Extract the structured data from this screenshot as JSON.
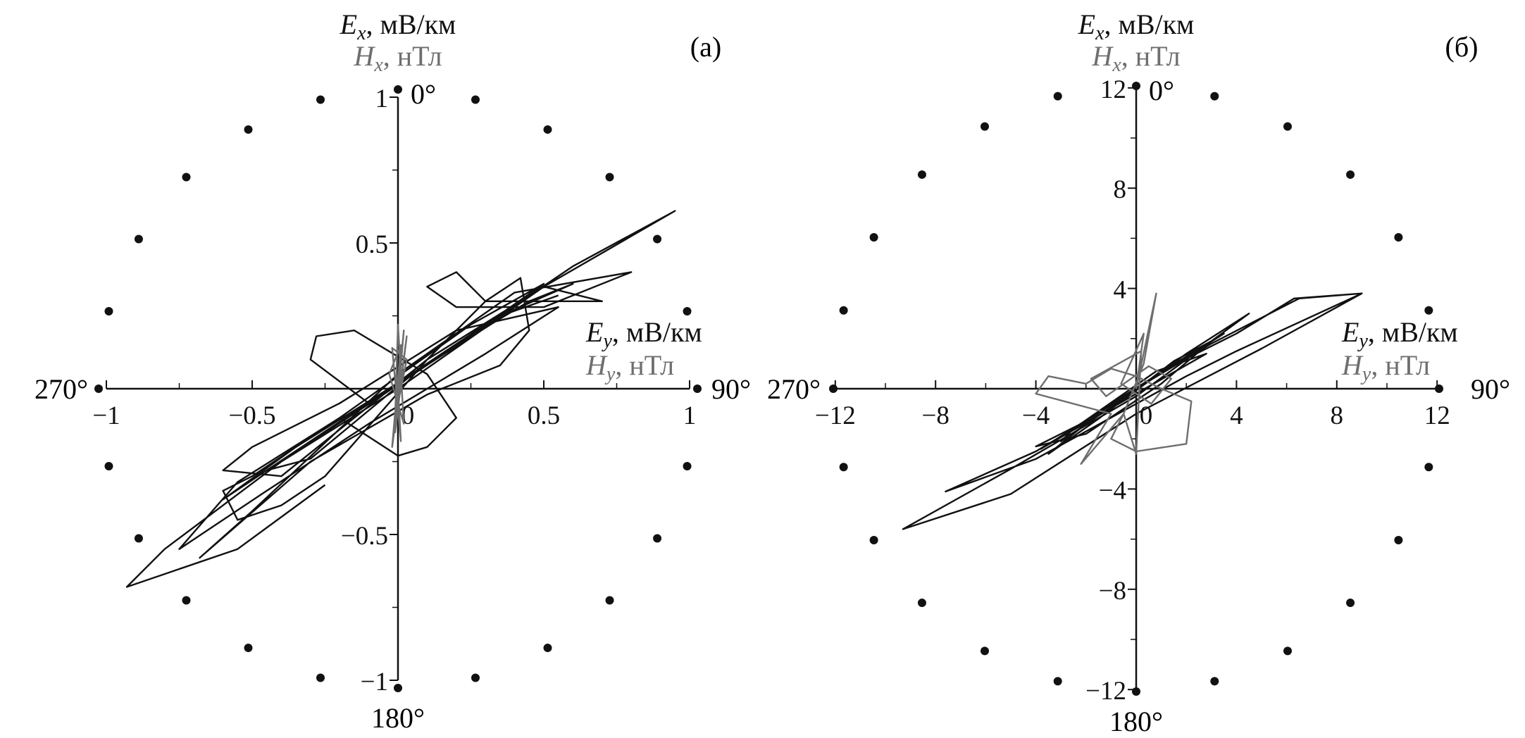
{
  "colors": {
    "E": "#111111",
    "H": "#6e6e6e",
    "dots": "#111111"
  },
  "chart_data": [
    {
      "type": "line",
      "panel_label": "(а)",
      "x_axis": {
        "symbol_E": "E",
        "sub_E": "y",
        "unit_E": ", мВ/км",
        "symbol_H": "H",
        "sub_H": "y",
        "unit_H": ", нТл"
      },
      "y_axis": {
        "symbol_E": "E",
        "sub_E": "x",
        "unit_E": ", мВ/км",
        "symbol_H": "H",
        "sub_H": "x",
        "unit_H": ", нТл"
      },
      "xlim": [
        -1,
        1
      ],
      "ylim": [
        -1,
        1
      ],
      "major_ticks": [
        -1,
        -0.5,
        0.5,
        1
      ],
      "minor_ticks": [
        -0.75,
        -0.25,
        0.25,
        0.75
      ],
      "tick_labels": [
        "−1",
        "−0.5",
        "0.5",
        "1"
      ],
      "origin_label": "0",
      "angle_labels": [
        "0°",
        "90°",
        "180°",
        "270°"
      ],
      "direction_dots_every_deg": 15,
      "series": [
        {
          "color_key": "E",
          "points": [
            [
              -0.25,
              -0.33
            ],
            [
              -0.55,
              -0.55
            ],
            [
              -0.93,
              -0.68
            ],
            [
              -0.8,
              -0.55
            ],
            [
              -0.4,
              -0.25
            ],
            [
              0,
              0
            ],
            [
              0.5,
              0.35
            ],
            [
              0.95,
              0.61
            ],
            [
              0.6,
              0.42
            ],
            [
              0.2,
              0.15
            ],
            [
              -0.1,
              -0.05
            ],
            [
              -0.3,
              0.1
            ],
            [
              -0.28,
              0.18
            ],
            [
              -0.15,
              0.2
            ],
            [
              0.1,
              0.05
            ],
            [
              0.2,
              -0.1
            ],
            [
              0.1,
              -0.2
            ],
            [
              0,
              -0.23
            ],
            [
              -0.2,
              -0.1
            ],
            [
              -0.5,
              -0.3
            ],
            [
              -0.6,
              -0.35
            ],
            [
              -0.55,
              -0.45
            ],
            [
              -0.4,
              -0.4
            ],
            [
              -0.25,
              -0.3
            ],
            [
              0.1,
              0.1
            ],
            [
              0.3,
              0.3
            ],
            [
              0.42,
              0.38
            ],
            [
              0.45,
              0.2
            ],
            [
              0.35,
              0.08
            ],
            [
              0.1,
              -0.02
            ],
            [
              -0.3,
              -0.25
            ],
            [
              -0.68,
              -0.58
            ],
            [
              -0.5,
              -0.42
            ],
            [
              0,
              0.05
            ],
            [
              0.4,
              0.33
            ],
            [
              0.8,
              0.4
            ],
            [
              0.5,
              0.28
            ],
            [
              0.2,
              0.28
            ],
            [
              0.1,
              0.35
            ],
            [
              0.2,
              0.4
            ],
            [
              0.3,
              0.3
            ],
            [
              0.6,
              0.3
            ],
            [
              0.7,
              0.3
            ],
            [
              0.5,
              0.35
            ],
            [
              0.1,
              0.1
            ],
            [
              -0.4,
              -0.3
            ],
            [
              -0.6,
              -0.28
            ],
            [
              -0.5,
              -0.2
            ],
            [
              -0.2,
              -0.05
            ],
            [
              0.2,
              0.2
            ],
            [
              0.55,
              0.28
            ],
            [
              0.3,
              0.12
            ],
            [
              -0.1,
              -0.12
            ],
            [
              -0.45,
              -0.35
            ],
            [
              -0.75,
              -0.55
            ],
            [
              -0.55,
              -0.32
            ],
            [
              -0.2,
              -0.1
            ],
            [
              0.25,
              0.22
            ],
            [
              0.5,
              0.36
            ],
            [
              0.3,
              0.22
            ],
            [
              0,
              0.02
            ],
            [
              -0.35,
              -0.2
            ],
            [
              -0.6,
              -0.38
            ],
            [
              -0.3,
              -0.18
            ],
            [
              0.15,
              0.12
            ],
            [
              0.45,
              0.3
            ],
            [
              0.6,
              0.36
            ],
            [
              0.35,
              0.25
            ],
            [
              -0.05,
              -0.02
            ],
            [
              -0.45,
              -0.28
            ],
            [
              -0.3,
              -0.24
            ],
            [
              0.05,
              0.05
            ],
            [
              0.38,
              0.26
            ],
            [
              0.55,
              0.32
            ]
          ]
        },
        {
          "color_key": "H",
          "points": [
            [
              0,
              0
            ],
            [
              0.02,
              0.2
            ],
            [
              -0.01,
              -0.15
            ],
            [
              0.03,
              0.18
            ],
            [
              -0.02,
              -0.2
            ],
            [
              0.01,
              0.15
            ],
            [
              -0.03,
              0.05
            ],
            [
              0.02,
              -0.12
            ],
            [
              0,
              0.22
            ],
            [
              -0.01,
              -0.1
            ],
            [
              0.03,
              0.1
            ],
            [
              -0.02,
              0.14
            ],
            [
              0.01,
              -0.18
            ],
            [
              0,
              0
            ]
          ]
        }
      ]
    },
    {
      "type": "line",
      "panel_label": "(б)",
      "x_axis": {
        "symbol_E": "E",
        "sub_E": "y",
        "unit_E": ", мВ/км",
        "symbol_H": "H",
        "sub_H": "y",
        "unit_H": ", нТл"
      },
      "y_axis": {
        "symbol_E": "E",
        "sub_E": "x",
        "unit_E": ", мВ/км",
        "symbol_H": "H",
        "sub_H": "x",
        "unit_H": ", нТл"
      },
      "xlim": [
        -12,
        12
      ],
      "ylim": [
        -12,
        12
      ],
      "major_ticks": [
        -12,
        -8,
        -4,
        4,
        8,
        12
      ],
      "minor_ticks": [
        -10,
        -6,
        -2,
        2,
        6,
        10
      ],
      "tick_labels": [
        "−12",
        "−8",
        "−4",
        "4",
        "8",
        "12"
      ],
      "origin_label": "0",
      "angle_labels": [
        "0°",
        "90°",
        "180°",
        "270°"
      ],
      "direction_dots_every_deg": 15,
      "series": [
        {
          "color_key": "E",
          "points": [
            [
              0,
              0
            ],
            [
              3,
              1.8
            ],
            [
              6.5,
              3.6
            ],
            [
              9,
              3.8
            ],
            [
              6.3,
              3.6
            ],
            [
              4,
              2.2
            ],
            [
              2,
              1.2
            ],
            [
              0,
              0
            ],
            [
              -2,
              -1.3
            ],
            [
              -4,
              -2.5
            ],
            [
              -7.6,
              -4.1
            ],
            [
              -4,
              -2.8
            ],
            [
              0,
              -0.6
            ],
            [
              2,
              0.5
            ],
            [
              4,
              1.5
            ],
            [
              9,
              3.8
            ],
            [
              5,
              1.6
            ],
            [
              0,
              -1
            ],
            [
              -5,
              -4.2
            ],
            [
              -9.3,
              -5.6
            ],
            [
              -5,
              -3.2
            ],
            [
              0,
              -0.3
            ],
            [
              4.5,
              3
            ],
            [
              2,
              1.4
            ],
            [
              -1,
              -0.8
            ],
            [
              -4,
              -2.3
            ],
            [
              -2,
              -1.8
            ],
            [
              1,
              0.2
            ],
            [
              3,
              1.9
            ],
            [
              1.5,
              1.1
            ],
            [
              -1.5,
              -1.2
            ],
            [
              -3.5,
              -2.6
            ],
            [
              -1,
              -0.6
            ],
            [
              2.5,
              1.6
            ],
            [
              3.5,
              2.2
            ],
            [
              0.5,
              0.3
            ],
            [
              -3,
              -2.1
            ],
            [
              -2.5,
              -1.6
            ],
            [
              0.8,
              0.7
            ],
            [
              2.8,
              1.4
            ],
            [
              0,
              -0.2
            ],
            [
              -3.8,
              -2.4
            ],
            [
              0,
              0
            ]
          ]
        },
        {
          "color_key": "H",
          "points": [
            [
              0,
              0
            ],
            [
              0.8,
              3.8
            ],
            [
              0.3,
              1
            ],
            [
              -0.5,
              -1
            ],
            [
              -2.2,
              -3
            ],
            [
              -1,
              -1
            ],
            [
              -4,
              -0.2
            ],
            [
              -3.5,
              0.5
            ],
            [
              -2,
              0.2
            ],
            [
              -1,
              0.8
            ],
            [
              0,
              0.5
            ],
            [
              1,
              0
            ],
            [
              2.2,
              -0.5
            ],
            [
              2,
              -2.2
            ],
            [
              0,
              -2.5
            ],
            [
              -1,
              -2
            ],
            [
              -0.5,
              -1
            ],
            [
              0,
              -2.6
            ],
            [
              0.2,
              1.5
            ],
            [
              -1.8,
              0.4
            ],
            [
              -1.2,
              -0.3
            ],
            [
              0.5,
              0.9
            ],
            [
              1.4,
              0.4
            ],
            [
              0.6,
              -0.6
            ],
            [
              -0.6,
              0.2
            ],
            [
              0.3,
              2.2
            ],
            [
              0,
              0
            ]
          ]
        }
      ]
    }
  ]
}
